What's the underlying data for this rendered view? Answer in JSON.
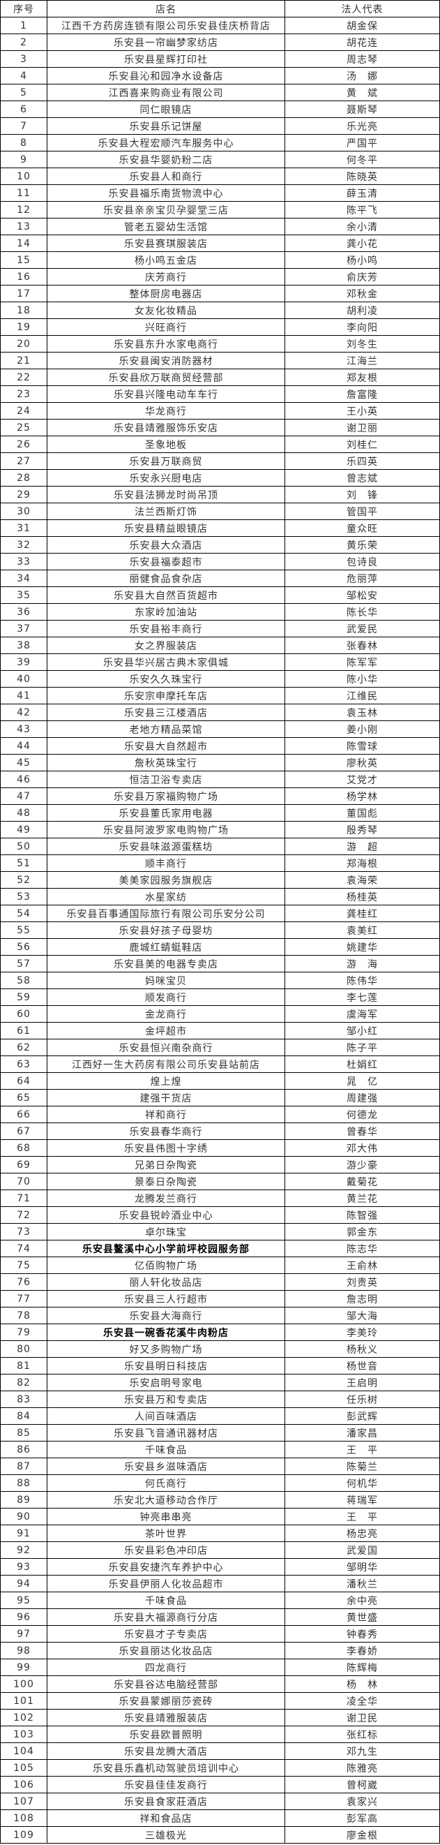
{
  "table": {
    "headers": [
      "序号",
      "店名",
      "法人代表"
    ],
    "dark_rows": [
      "74",
      "79"
    ],
    "rows": [
      [
        "1",
        "江西千方药房连锁有限公司乐安县佳庆桥背店",
        "胡金保"
      ],
      [
        "2",
        "乐安县一帘幽梦家纺店",
        "胡花连"
      ],
      [
        "3",
        "乐安县星辉打印社",
        "周志琴"
      ],
      [
        "4",
        "乐安县沁和园净水设备店",
        "汤　娜"
      ],
      [
        "5",
        "江西喜来购商业有限公司",
        "黄　斌"
      ],
      [
        "6",
        "同仁眼镜店",
        "聂斯琴"
      ],
      [
        "7",
        "乐安县乐记饼屋",
        "乐光亮"
      ],
      [
        "8",
        "乐安县大程宏顺汽车服务中心",
        "严国平"
      ],
      [
        "9",
        "乐安县华婴奶粉二店",
        "何冬平"
      ],
      [
        "10",
        "乐安县人和商行",
        "陈晓英"
      ],
      [
        "11",
        "乐安县福乐南货物流中心",
        "薛玉清"
      ],
      [
        "12",
        "乐安县亲亲宝贝孕婴堂三店",
        "陈平飞"
      ],
      [
        "13",
        "管老五婴幼生活馆",
        "余小清"
      ],
      [
        "14",
        "乐安县赛琪服装店",
        "龚小花"
      ],
      [
        "15",
        "杨小鸣五金店",
        "杨小鸣"
      ],
      [
        "16",
        "庆芳商行",
        "俞庆芳"
      ],
      [
        "17",
        "整体厨房电器店",
        "邓秋金"
      ],
      [
        "18",
        "女友化妆精品",
        "胡利凌"
      ],
      [
        "19",
        "兴旺商行",
        "李向阳"
      ],
      [
        "20",
        "乐安县东升水家电商行",
        "刘冬生"
      ],
      [
        "21",
        "乐安县闽安消防器材",
        "江海兰"
      ],
      [
        "22",
        "乐安县欣万联商贸经营部",
        "郑友根"
      ],
      [
        "23",
        "乐安县兴隆电动车车行",
        "詹富隆"
      ],
      [
        "24",
        "华龙商行",
        "王小英"
      ],
      [
        "25",
        "乐安县靖雅服饰乐安店",
        "谢卫丽"
      ],
      [
        "26",
        "圣象地板",
        "刘桂仁"
      ],
      [
        "27",
        "乐安县万联商贸",
        "乐四英"
      ],
      [
        "28",
        "乐安永兴厨电店",
        "曾志斌"
      ],
      [
        "29",
        "乐安县法狮龙时尚吊顶",
        "刘　锋"
      ],
      [
        "30",
        "法兰西斯灯饰",
        "管国平"
      ],
      [
        "31",
        "乐安县精益眼镜店",
        "童众旺"
      ],
      [
        "32",
        "乐安县大众酒店",
        "黄乐荣"
      ],
      [
        "33",
        "乐安县福泰超市",
        "包诗良"
      ],
      [
        "34",
        "丽健食品食杂店",
        "危丽萍"
      ],
      [
        "35",
        "乐安县大自然百货超市",
        "邹松安"
      ],
      [
        "36",
        "东家岭加油站",
        "陈长华"
      ],
      [
        "37",
        "乐安县裕丰商行",
        "武爱民"
      ],
      [
        "38",
        "女之界服装店",
        "张春林"
      ],
      [
        "39",
        "乐安县华兴居古典木家俱城",
        "陈军军"
      ],
      [
        "40",
        "乐安久久珠宝行",
        "陈小华"
      ],
      [
        "41",
        "乐安宗申摩托车店",
        "江维民"
      ],
      [
        "42",
        "乐安县三江楼酒店",
        "袁玉林"
      ],
      [
        "43",
        "老地方精品菜馆",
        "姜小刚"
      ],
      [
        "44",
        "乐安县大自然超市",
        "陈雪球"
      ],
      [
        "45",
        "詹秋英珠宝行",
        "廖秋英"
      ],
      [
        "46",
        "恒洁卫浴专卖店",
        "艾党才"
      ],
      [
        "47",
        "乐安县万家福购物广场",
        "杨学林"
      ],
      [
        "48",
        "乐安县董氏家用电器",
        "董国彪"
      ],
      [
        "49",
        "乐安县阿波罗家电购物广场",
        "殷秀琴"
      ],
      [
        "50",
        "乐安县味滋源蛋糕坊",
        "游　超"
      ],
      [
        "51",
        "顺丰商行",
        "郑海根"
      ],
      [
        "52",
        "美美家园服务旗舰店",
        "袁海荣"
      ],
      [
        "53",
        "水星家纺",
        "杨桂英"
      ],
      [
        "54",
        "乐安县百事通国际旅行有限公司乐安分公司",
        "龚桂红"
      ],
      [
        "55",
        "乐安县好孩子母婴坊",
        "袁美红"
      ],
      [
        "56",
        "鹿城红蜻蜓鞋店",
        "姚建华"
      ],
      [
        "57",
        "乐安县美的电器专卖店",
        "游　海"
      ],
      [
        "58",
        "妈咪宝贝",
        "陈伟华"
      ],
      [
        "59",
        "顺发商行",
        "李七莲"
      ],
      [
        "60",
        "金龙商行",
        "虞海军"
      ],
      [
        "61",
        "金坪超市",
        "邹小红"
      ],
      [
        "62",
        "乐安县恒兴南杂商行",
        "陈子平"
      ],
      [
        "63",
        "江西好一生大药房有限公司乐安县站前店",
        "杜娟红"
      ],
      [
        "64",
        "煌上煌",
        "晁　亿"
      ],
      [
        "65",
        "建强干货店",
        "周建强"
      ],
      [
        "66",
        "祥和商行",
        "何德龙"
      ],
      [
        "67",
        "乐安县春华商行",
        "曾春华"
      ],
      [
        "68",
        "乐安县伟图十字绣",
        "邓大伟"
      ],
      [
        "69",
        "兄弟日杂陶瓷",
        "游少豪"
      ],
      [
        "70",
        "景泰日杂陶瓷",
        "戴菊花"
      ],
      [
        "71",
        "龙腾发兰商行",
        "黄兰花"
      ],
      [
        "72",
        "乐安县锐岭酒业中心",
        "陈智强"
      ],
      [
        "73",
        "卓尔珠宝",
        "郭金东"
      ],
      [
        "74",
        "乐安县鳌溪中心小学前坪校园服务部",
        "陈志华"
      ],
      [
        "75",
        "亿佰购物广场",
        "王俞林"
      ],
      [
        "76",
        "丽人轩化妆品店",
        "刘贵英"
      ],
      [
        "77",
        "乐安县三人行超市",
        "詹志明"
      ],
      [
        "78",
        "乐安县大海商行",
        "邹大海"
      ],
      [
        "79",
        "乐安县一碗香花溪牛肉粉店",
        "李美玲"
      ],
      [
        "80",
        "好又多购物广场",
        "杨秋义"
      ],
      [
        "81",
        "乐安县明日科技店",
        "杨世音"
      ],
      [
        "82",
        "乐安启明号家电",
        "王启明"
      ],
      [
        "83",
        "乐安县万和专卖店",
        "任乐树"
      ],
      [
        "84",
        "人间百味酒店",
        "彭武辉"
      ],
      [
        "85",
        "乐安县飞音通讯器材店",
        "潘家昌"
      ],
      [
        "86",
        "千味食品",
        "王　平"
      ],
      [
        "87",
        "乐安县乡滋味酒店",
        "陈菊兰"
      ],
      [
        "88",
        "何氏商行",
        "何机华"
      ],
      [
        "89",
        "乐安北大道移动合作厅",
        "蒋瑞军"
      ],
      [
        "90",
        "钟亮串串亮",
        "王　平"
      ],
      [
        "91",
        "茶叶世界",
        "杨忠亮"
      ],
      [
        "92",
        "乐安县彩色冲印店",
        "武爱国"
      ],
      [
        "93",
        "乐安县安捷汽车养护中心",
        "邹明华"
      ],
      [
        "94",
        "乐安县伊丽人化妆品超市",
        "潘秋兰"
      ],
      [
        "95",
        "千味食品",
        "余中亮"
      ],
      [
        "96",
        "乐安县大福源商行分店",
        "黄世盛"
      ],
      [
        "97",
        "乐安县才子专卖店",
        "钟春秀"
      ],
      [
        "98",
        "乐安县丽达化妆品店",
        "李春娇"
      ],
      [
        "99",
        "四龙商行",
        "陈辉梅"
      ],
      [
        "100",
        "乐安县谷达电脑经营部",
        "杨　林"
      ],
      [
        "101",
        "乐安县蒙娜丽莎瓷砖",
        "凌全华"
      ],
      [
        "102",
        "乐安县靖雅服装店",
        "谢卫民"
      ],
      [
        "103",
        "乐安县欧普照明",
        "张红标"
      ],
      [
        "104",
        "乐安县龙腾大酒店",
        "邓九生"
      ],
      [
        "105",
        "乐安县乐鑫机动驾驶员培训中心",
        "陈雅亮"
      ],
      [
        "106",
        "乐安县佳佳发商行",
        "曾柯崴"
      ],
      [
        "107",
        "乐安县食家莊酒店",
        "袁家兴"
      ],
      [
        "108",
        "祥和食品店",
        "彭军高"
      ],
      [
        "109",
        "三雄极光",
        "廖金根"
      ]
    ]
  }
}
